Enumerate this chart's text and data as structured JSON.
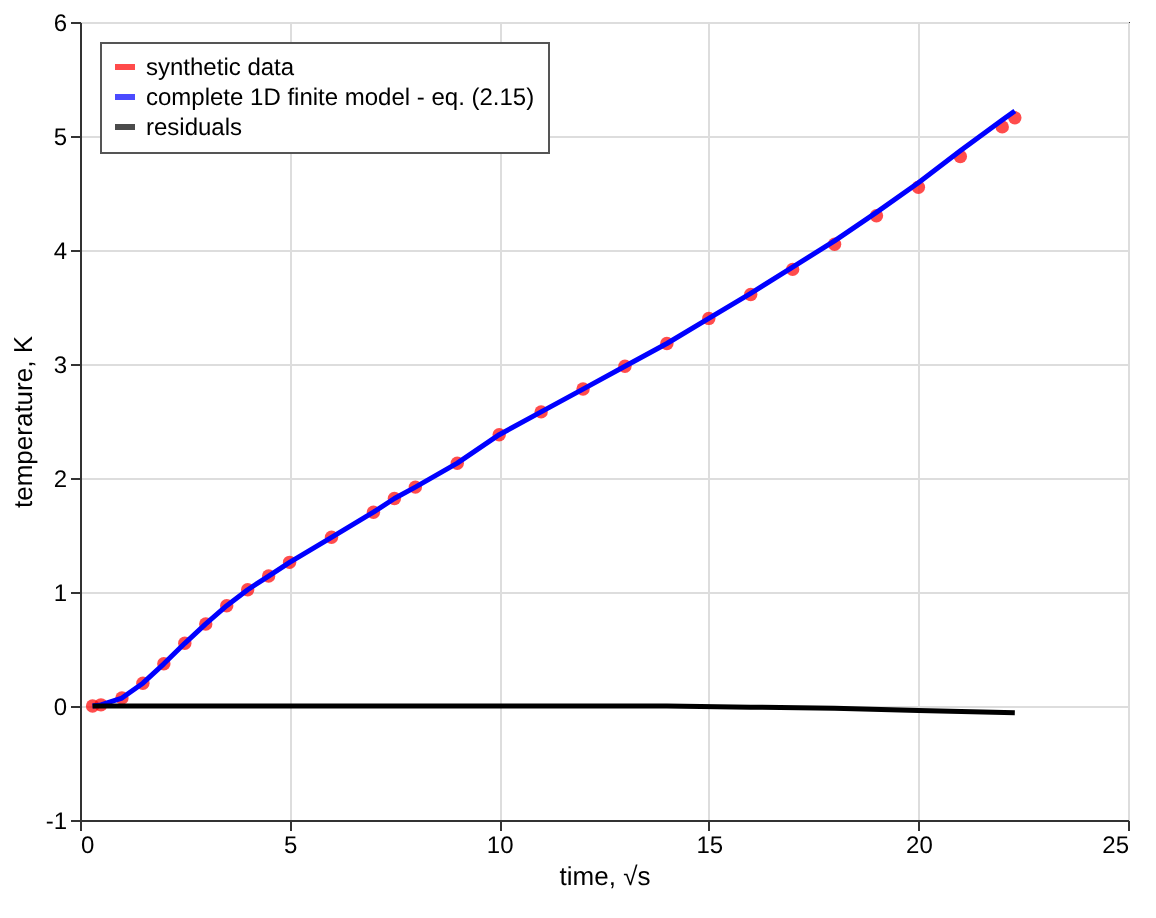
{
  "chart_data": {
    "type": "line",
    "xlabel": "time, √s",
    "ylabel": "temperature, K",
    "xlim": [
      0,
      25
    ],
    "xticks": [
      0,
      5,
      10,
      15,
      20,
      25
    ],
    "ylim": [
      -1,
      6
    ],
    "yticks": [
      -1,
      0,
      1,
      2,
      3,
      4,
      5,
      6
    ],
    "grid": true,
    "legend": "top left",
    "series": [
      {
        "name": "synthetic data",
        "type": "scatter",
        "marker": "circle",
        "color": "#ff0000",
        "x": [
          0.3,
          0.5,
          1,
          1.5,
          2,
          2.5,
          3,
          3.5,
          4,
          4.5,
          5,
          6,
          7,
          7.5,
          8,
          9,
          10,
          11,
          12,
          13,
          14,
          15,
          16,
          17,
          18,
          19,
          20,
          21,
          22,
          22.3
        ],
        "values": [
          0,
          0.01,
          0.07,
          0.2,
          0.37,
          0.55,
          0.72,
          0.88,
          1.02,
          1.14,
          1.26,
          1.48,
          1.7,
          1.82,
          1.92,
          2.13,
          2.38,
          2.58,
          2.78,
          2.98,
          3.18,
          3.4,
          3.61,
          3.83,
          4.05,
          4.3,
          4.55,
          4.82,
          5.08,
          5.16
        ]
      },
      {
        "name": "complete 1D finite model - eq. (2.15)",
        "color": "#0000ff",
        "x": [
          0.3,
          0.5,
          1,
          1.5,
          2,
          2.5,
          3,
          3.5,
          4,
          4.5,
          5,
          6,
          7,
          7.5,
          8,
          9,
          10,
          11,
          12,
          13,
          14,
          15,
          16,
          17,
          18,
          19,
          20,
          21,
          22,
          22.3
        ],
        "values": [
          0,
          0.01,
          0.07,
          0.2,
          0.37,
          0.55,
          0.72,
          0.88,
          1.02,
          1.14,
          1.26,
          1.48,
          1.7,
          1.82,
          1.92,
          2.13,
          2.38,
          2.58,
          2.78,
          2.98,
          3.18,
          3.4,
          3.62,
          3.85,
          4.08,
          4.33,
          4.59,
          4.87,
          5.14,
          5.22
        ]
      },
      {
        "name": "residuals",
        "color": "#000000",
        "x": [
          0.3,
          2,
          4,
          6,
          8,
          10,
          12,
          14,
          16,
          18,
          20,
          22.3
        ],
        "values": [
          0,
          0,
          0,
          0,
          0,
          0,
          0,
          0,
          -0.01,
          -0.02,
          -0.04,
          -0.06
        ]
      }
    ]
  }
}
